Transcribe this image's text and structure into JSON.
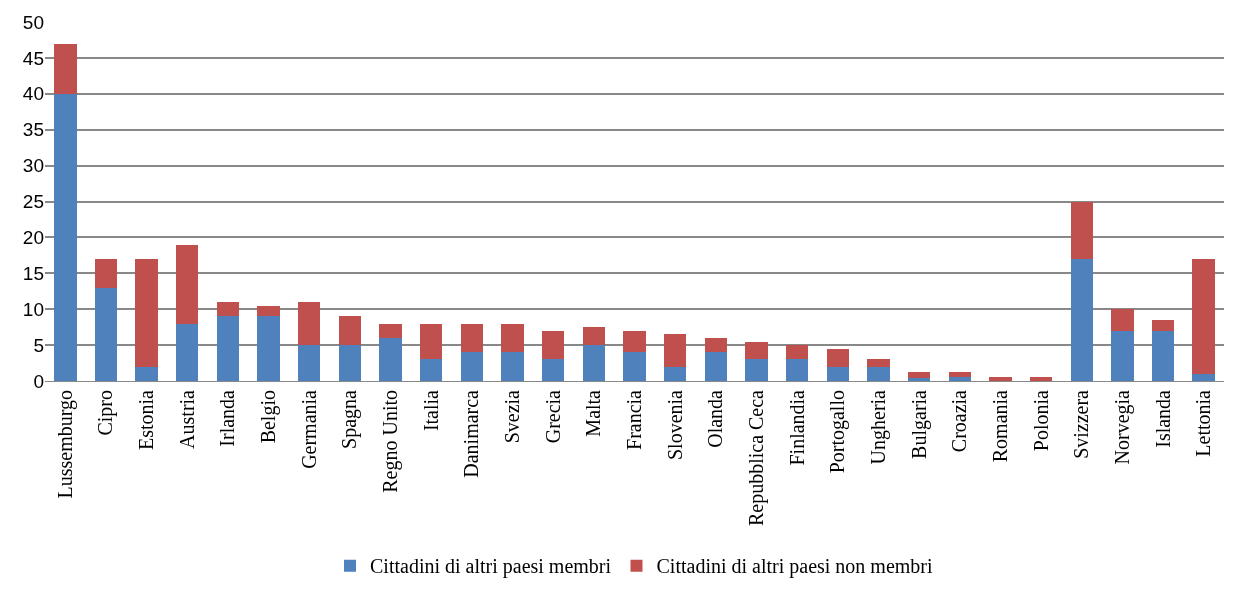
{
  "chart_data": {
    "type": "bar",
    "stacked": true,
    "categories": [
      "Lussemburgo",
      "Cipro",
      "Estonia",
      "Austria",
      "Irlanda",
      "Belgio",
      "Germania",
      "Spagna",
      "Regno Unito",
      "Italia",
      "Danimarca",
      "Svezia",
      "Grecia",
      "Malta",
      "Francia",
      "Slovenia",
      "Olanda",
      "Repubblica Ceca",
      "Finlandia",
      "Portogallo",
      "Ungheria",
      "Bulgaria",
      "Croazia",
      "Romania",
      "Polonia",
      "Svizzera",
      "Norvegia",
      "Islanda",
      "Lettonia"
    ],
    "series": [
      {
        "name": "Cittadini di altri paesi membri",
        "color": "#4f81bd",
        "values": [
          40,
          13,
          2,
          8,
          9,
          9,
          5,
          5,
          6,
          3,
          4,
          4,
          3,
          5,
          4,
          2,
          4,
          3,
          3,
          2,
          2,
          0.4,
          0.5,
          null,
          null,
          17,
          7,
          7,
          1
        ]
      },
      {
        "name": "Cittadini di altri paesi non membri",
        "color": "#c0504d",
        "values": [
          7,
          4,
          15,
          11,
          2,
          1.5,
          6,
          4,
          2,
          5,
          4,
          4,
          4,
          2.5,
          3,
          4.5,
          2,
          2.5,
          2,
          2.5,
          1,
          0.9,
          0.8,
          0.6,
          0.5,
          8,
          3,
          1.5,
          16
        ]
      }
    ],
    "ylim": [
      0,
      50
    ],
    "yticks": [
      0,
      5,
      10,
      15,
      20,
      25,
      30,
      35,
      40,
      45,
      50
    ],
    "grid": "y",
    "legend": "bottom"
  }
}
